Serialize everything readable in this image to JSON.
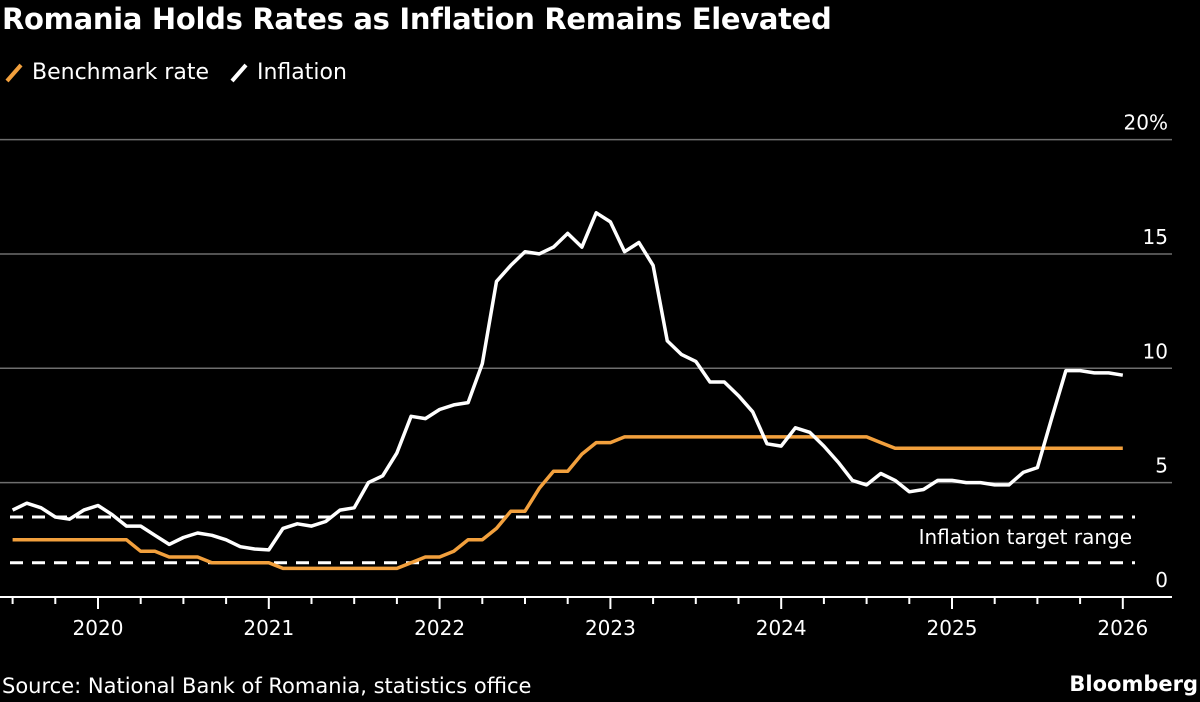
{
  "title": "Romania Holds Rates as Inflation Remains Elevated",
  "source": "Source: National Bank of Romania, statistics office",
  "brand": "Bloomberg",
  "colors": {
    "benchmark": "#f2a03d",
    "inflation": "#ffffff",
    "grid": "#6e6e6e",
    "background": "#000000"
  },
  "chart_data": {
    "type": "line",
    "title": "Romania Holds Rates as Inflation Remains Elevated",
    "legend_placement": "top-left",
    "grid": true,
    "x_start": "2019-06",
    "x_end": "2025-12",
    "x_tick_labels": [
      "2020",
      "2021",
      "2022",
      "2023",
      "2024",
      "2025",
      "2026"
    ],
    "y_tick_labels": [
      "0",
      "5",
      "10",
      "15",
      "20%"
    ],
    "ylim": [
      0,
      20
    ],
    "y_ticks": [
      0,
      5,
      10,
      15,
      20
    ],
    "annotation": "Inflation target range",
    "target_range": [
      1.5,
      3.5
    ],
    "series": [
      {
        "name": "Benchmark rate",
        "color": "#f2a03d",
        "values": [
          2.5,
          2.5,
          2.5,
          2.5,
          2.5,
          2.5,
          2.5,
          2.5,
          2.5,
          2.0,
          2.0,
          1.75,
          1.75,
          1.75,
          1.5,
          1.5,
          1.5,
          1.5,
          1.5,
          1.25,
          1.25,
          1.25,
          1.25,
          1.25,
          1.25,
          1.25,
          1.25,
          1.25,
          1.5,
          1.75,
          1.75,
          2.0,
          2.5,
          2.5,
          3.0,
          3.75,
          3.75,
          4.75,
          5.5,
          5.5,
          6.25,
          6.75,
          6.75,
          7.0,
          7.0,
          7.0,
          7.0,
          7.0,
          7.0,
          7.0,
          7.0,
          7.0,
          7.0,
          7.0,
          7.0,
          7.0,
          7.0,
          7.0,
          7.0,
          7.0,
          7.0,
          6.75,
          6.5,
          6.5,
          6.5,
          6.5,
          6.5,
          6.5,
          6.5,
          6.5,
          6.5,
          6.5,
          6.5,
          6.5,
          6.5,
          6.5,
          6.5,
          6.5,
          6.5
        ]
      },
      {
        "name": "Inflation",
        "color": "#ffffff",
        "values": [
          3.8,
          4.1,
          3.9,
          3.5,
          3.4,
          3.8,
          4.0,
          3.6,
          3.1,
          3.1,
          2.7,
          2.3,
          2.6,
          2.8,
          2.7,
          2.5,
          2.2,
          2.1,
          2.06,
          3.0,
          3.2,
          3.1,
          3.3,
          3.8,
          3.9,
          5.0,
          5.3,
          6.3,
          7.9,
          7.8,
          8.2,
          8.4,
          8.5,
          10.2,
          13.8,
          14.5,
          15.1,
          15.0,
          15.3,
          15.9,
          15.3,
          16.8,
          16.4,
          15.1,
          15.5,
          14.5,
          11.2,
          10.6,
          10.3,
          9.4,
          9.4,
          8.8,
          8.1,
          6.7,
          6.6,
          7.4,
          7.2,
          6.6,
          5.9,
          5.1,
          4.9,
          5.4,
          5.1,
          4.6,
          4.7,
          5.1,
          5.1,
          5.0,
          5.0,
          4.9,
          4.9,
          5.45,
          5.66,
          7.8,
          9.9,
          9.9,
          9.8,
          9.8,
          9.7
        ]
      }
    ]
  }
}
